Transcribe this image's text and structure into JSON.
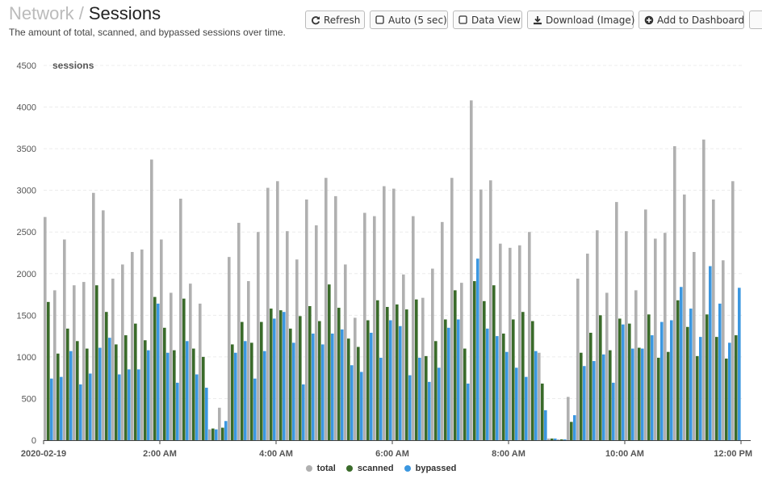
{
  "header": {
    "breadcrumb": "Network",
    "separator": "/",
    "title": "Sessions",
    "subtitle": "The amount of total, scanned, and bypassed sessions over time."
  },
  "toolbar": {
    "refresh_label": "Refresh",
    "auto_label": "Auto (5 sec)",
    "dataview_label": "Data View",
    "download_label": "Download (Image)",
    "dashboard_label": "Add to Dashboard"
  },
  "icons": {
    "refresh": "refresh-icon",
    "auto": "checkbox-icon",
    "dataview": "checkbox-icon",
    "download": "download-icon",
    "dashboard": "plus-circle-icon"
  },
  "colors": {
    "total": "#b0b0b0",
    "scanned": "#3a6b2a",
    "bypassed": "#3b97e0"
  },
  "chart_data": {
    "type": "bar",
    "ylabel": "sessions",
    "ylim": [
      0,
      4500
    ],
    "yticks": [
      0,
      500,
      1000,
      1500,
      2000,
      2500,
      3000,
      3500,
      4000,
      4500
    ],
    "x_tick_labels": [
      "2020-02-19",
      "2:00 AM",
      "4:00 AM",
      "6:00 AM",
      "8:00 AM",
      "10:00 AM",
      "12:00 PM"
    ],
    "x_tick_slots": [
      0,
      12,
      24,
      36,
      48,
      60,
      72
    ],
    "grid": true,
    "legend_position": "bottom",
    "series": [
      {
        "name": "total",
        "color": "#b0b0b0",
        "values": [
          2680,
          1800,
          2410,
          1860,
          1900,
          2970,
          2760,
          1940,
          2110,
          2260,
          2290,
          3370,
          2410,
          1770,
          2900,
          1880,
          1640,
          130,
          390,
          2200,
          2610,
          1910,
          2500,
          3030,
          3110,
          2510,
          2170,
          2890,
          2580,
          3150,
          2930,
          2110,
          1470,
          2730,
          2690,
          3050,
          3020,
          1990,
          2690,
          1710,
          2060,
          2620,
          3150,
          1890,
          4080,
          3010,
          3120,
          2360,
          2310,
          2340,
          2500,
          1050,
          20,
          10,
          520,
          1940,
          2240,
          2520,
          1770,
          2860,
          2510,
          1800,
          2770,
          2420,
          2490,
          3530,
          2950,
          2260,
          3610,
          2890,
          2160,
          3110
        ]
      },
      {
        "name": "scanned",
        "color": "#3a6b2a",
        "values": [
          1660,
          1040,
          1340,
          1190,
          1100,
          1860,
          1540,
          1150,
          1260,
          1400,
          1200,
          1720,
          1350,
          1080,
          1700,
          1100,
          1000,
          140,
          150,
          1150,
          1420,
          1170,
          1420,
          1580,
          1560,
          1340,
          1490,
          1610,
          1430,
          1870,
          1590,
          1220,
          1120,
          1440,
          1680,
          1600,
          1630,
          1570,
          1690,
          1010,
          1190,
          1450,
          1800,
          1100,
          1910,
          1670,
          1860,
          1280,
          1450,
          1540,
          1430,
          680,
          20,
          10,
          220,
          1050,
          1290,
          1500,
          1080,
          1460,
          1400,
          1110,
          1510,
          990,
          1060,
          1680,
          1360,
          1010,
          1510,
          1240,
          980,
          1260
        ]
      },
      {
        "name": "bypassed",
        "color": "#3b97e0",
        "values": [
          740,
          760,
          1070,
          670,
          800,
          1110,
          1230,
          790,
          850,
          850,
          1080,
          1640,
          1050,
          690,
          1190,
          790,
          630,
          130,
          230,
          1050,
          1190,
          740,
          1070,
          1460,
          1540,
          1170,
          670,
          1280,
          1150,
          1280,
          1330,
          900,
          820,
          1290,
          990,
          1440,
          1370,
          780,
          990,
          700,
          870,
          1350,
          1450,
          680,
          2180,
          1340,
          1250,
          1060,
          870,
          760,
          1070,
          360,
          20,
          10,
          300,
          890,
          950,
          1030,
          690,
          1390,
          1100,
          1100,
          1260,
          1420,
          1440,
          1840,
          1580,
          1240,
          2090,
          1640,
          1170,
          1830
        ]
      }
    ]
  }
}
